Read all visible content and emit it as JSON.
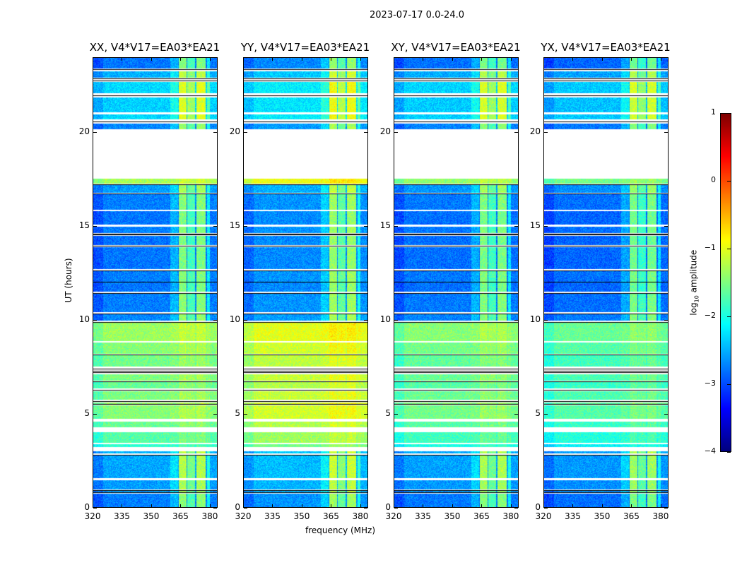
{
  "title": "2023-07-17 0.0-24.0",
  "chart_data": {
    "type": "heatmap",
    "xlabel": "frequency (MHz)",
    "ylabel": "UT (hours)",
    "xlim": [
      320,
      384
    ],
    "ylim": [
      0,
      24
    ],
    "xticks": [
      "320",
      "335",
      "350",
      "365",
      "380"
    ],
    "xtick_values": [
      320,
      335,
      350,
      365,
      380
    ],
    "yticks": [
      "0",
      "5",
      "10",
      "15",
      "20"
    ],
    "ytick_values": [
      0,
      5,
      10,
      15,
      20
    ],
    "colorbar": {
      "label_prefix": "log",
      "label_sub": "10",
      "label_suffix": " amplitude",
      "range": [
        -4,
        1
      ],
      "ticks": [
        "1",
        "0",
        "−1",
        "−2",
        "−3",
        "−4"
      ],
      "tick_values": [
        1,
        0,
        -1,
        -2,
        -3,
        -4
      ],
      "colormap": "jet"
    },
    "time_segments_hours_level": [
      [
        0.0,
        0.7,
        -2.75
      ],
      [
        0.75,
        0.9,
        -2.6
      ],
      [
        0.95,
        1.45,
        -2.6
      ],
      [
        1.55,
        2.75,
        -2.55
      ],
      [
        2.85,
        3.0,
        -2.5
      ],
      [
        3.2,
        3.35,
        -1.9
      ],
      [
        3.45,
        4.0,
        -1.7
      ],
      [
        4.25,
        4.55,
        -1.6
      ],
      [
        4.7,
        5.45,
        -1.45
      ],
      [
        5.5,
        5.6,
        -1.4
      ],
      [
        5.75,
        6.2,
        -1.5
      ],
      [
        6.35,
        6.7,
        -1.6
      ],
      [
        6.75,
        7.1,
        -1.5
      ],
      [
        7.5,
        8.1,
        -1.55
      ],
      [
        8.2,
        8.8,
        -1.45
      ],
      [
        8.85,
        9.85,
        -1.35
      ],
      [
        9.95,
        10.3,
        -2.7
      ],
      [
        10.4,
        11.4,
        -2.75
      ],
      [
        11.5,
        12.0,
        -2.8
      ],
      [
        12.05,
        12.6,
        -2.75
      ],
      [
        12.7,
        13.9,
        -2.8
      ],
      [
        14.0,
        14.5,
        -2.8
      ],
      [
        14.65,
        15.0,
        -2.75
      ],
      [
        15.1,
        15.8,
        -2.8
      ],
      [
        15.9,
        16.7,
        -2.75
      ],
      [
        16.8,
        17.2,
        -2.6
      ],
      [
        17.3,
        17.55,
        -1.3
      ],
      [
        20.2,
        20.5,
        -2.7
      ],
      [
        20.7,
        21.0,
        -2.3
      ],
      [
        21.1,
        21.9,
        -2.35
      ],
      [
        22.1,
        22.7,
        -2.3
      ],
      [
        22.95,
        23.3,
        -2.5
      ],
      [
        23.45,
        24.0,
        -2.8
      ]
    ],
    "black_lines_hours": [
      0.8,
      0.92,
      2.8,
      5.5,
      5.65,
      6.25,
      6.72,
      7.2,
      7.3,
      7.4,
      8.15,
      9.9,
      10.35,
      11.45,
      12.02,
      12.65,
      13.95,
      14.55,
      14.6,
      16.75,
      17.25,
      20.6,
      22.0,
      22.8,
      22.9,
      23.4
    ],
    "rfi_bands_mhz_boost": [
      [
        360,
        364,
        0.3
      ],
      [
        364.2,
        368.3,
        1.3
      ],
      [
        368.8,
        372.8,
        1.0
      ],
      [
        373.4,
        378.3,
        1.3
      ],
      [
        378.8,
        380.5,
        0.6
      ]
    ],
    "panels": [
      {
        "title": "XX, V4*V17=EA03*EA21",
        "offset": 0.0
      },
      {
        "title": "YY, V4*V17=EA03*EA21",
        "offset": 0.35
      },
      {
        "title": "XY, V4*V17=EA03*EA21",
        "offset": -0.1
      },
      {
        "title": "YX, V4*V17=EA03*EA21",
        "offset": -0.25
      }
    ]
  }
}
